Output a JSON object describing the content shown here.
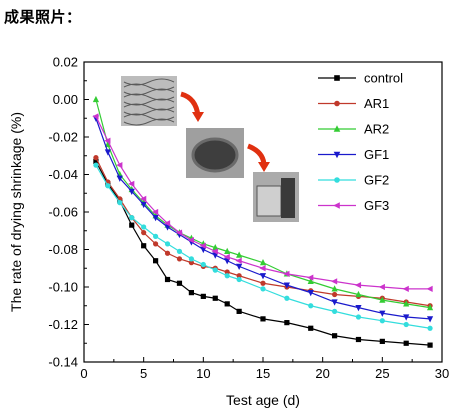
{
  "header": {
    "title": "成果照片："
  },
  "chart_data": {
    "type": "line",
    "title": "",
    "xlabel": "Test age (d)",
    "ylabel": "The rate of drying shrinkage (%)",
    "xlim": [
      0,
      30
    ],
    "ylim": [
      -0.14,
      0.02
    ],
    "xticks": [
      0,
      5,
      10,
      15,
      20,
      25,
      30
    ],
    "yticks": [
      0.02,
      0.0,
      -0.02,
      -0.04,
      -0.06,
      -0.08,
      -0.1,
      -0.12,
      -0.14
    ],
    "ytick_labels": [
      "0.02",
      "0.00",
      "-0.02",
      "-0.04",
      "-0.06",
      "-0.08",
      "-0.10",
      "-0.12",
      "-0.14"
    ],
    "grid": false,
    "legend_position": "top-right",
    "x": [
      1,
      2,
      3,
      4,
      5,
      6,
      7,
      8,
      9,
      10,
      11,
      12,
      13,
      15,
      17,
      19,
      21,
      23,
      25,
      27,
      29
    ],
    "series": [
      {
        "name": "control",
        "color": "#000000",
        "marker": "square",
        "values": [
          -0.033,
          -0.045,
          -0.054,
          -0.067,
          -0.078,
          -0.086,
          -0.096,
          -0.098,
          -0.103,
          -0.105,
          -0.106,
          -0.109,
          -0.113,
          -0.117,
          -0.119,
          -0.122,
          -0.126,
          -0.128,
          -0.129,
          -0.13,
          -0.131
        ]
      },
      {
        "name": "AR1",
        "color": "#c0392b",
        "marker": "circle",
        "values": [
          -0.031,
          -0.044,
          -0.053,
          -0.063,
          -0.071,
          -0.077,
          -0.082,
          -0.085,
          -0.087,
          -0.089,
          -0.09,
          -0.092,
          -0.094,
          -0.098,
          -0.1,
          -0.102,
          -0.104,
          -0.105,
          -0.106,
          -0.108,
          -0.11
        ]
      },
      {
        "name": "AR2",
        "color": "#33cc33",
        "marker": "triangle-up",
        "values": [
          0.0,
          -0.024,
          -0.04,
          -0.048,
          -0.055,
          -0.062,
          -0.067,
          -0.071,
          -0.074,
          -0.077,
          -0.079,
          -0.081,
          -0.083,
          -0.087,
          -0.093,
          -0.097,
          -0.101,
          -0.104,
          -0.107,
          -0.109,
          -0.111
        ]
      },
      {
        "name": "GF1",
        "color": "#1a1acc",
        "marker": "triangle-down",
        "values": [
          -0.01,
          -0.028,
          -0.042,
          -0.049,
          -0.056,
          -0.063,
          -0.068,
          -0.072,
          -0.076,
          -0.08,
          -0.083,
          -0.086,
          -0.089,
          -0.094,
          -0.099,
          -0.103,
          -0.108,
          -0.111,
          -0.114,
          -0.116,
          -0.117
        ]
      },
      {
        "name": "GF2",
        "color": "#33dddd",
        "marker": "circle",
        "values": [
          -0.035,
          -0.046,
          -0.055,
          -0.063,
          -0.068,
          -0.073,
          -0.077,
          -0.081,
          -0.085,
          -0.088,
          -0.091,
          -0.094,
          -0.096,
          -0.101,
          -0.106,
          -0.11,
          -0.113,
          -0.116,
          -0.118,
          -0.12,
          -0.122
        ]
      },
      {
        "name": "GF3",
        "color": "#cc33cc",
        "marker": "triangle-left",
        "values": [
          -0.009,
          -0.022,
          -0.035,
          -0.045,
          -0.053,
          -0.06,
          -0.066,
          -0.071,
          -0.075,
          -0.078,
          -0.081,
          -0.084,
          -0.086,
          -0.09,
          -0.093,
          -0.095,
          -0.097,
          -0.099,
          -0.1,
          -0.101,
          -0.101
        ]
      }
    ]
  },
  "inset": {
    "photos": [
      {
        "name": "fiber-photo",
        "fill": "#b8b8b8"
      },
      {
        "name": "bucket-photo",
        "fill": "#9a9a9a"
      },
      {
        "name": "specimen-photo",
        "fill": "#a6a6a6"
      }
    ],
    "arrow_color": "#e03010"
  }
}
